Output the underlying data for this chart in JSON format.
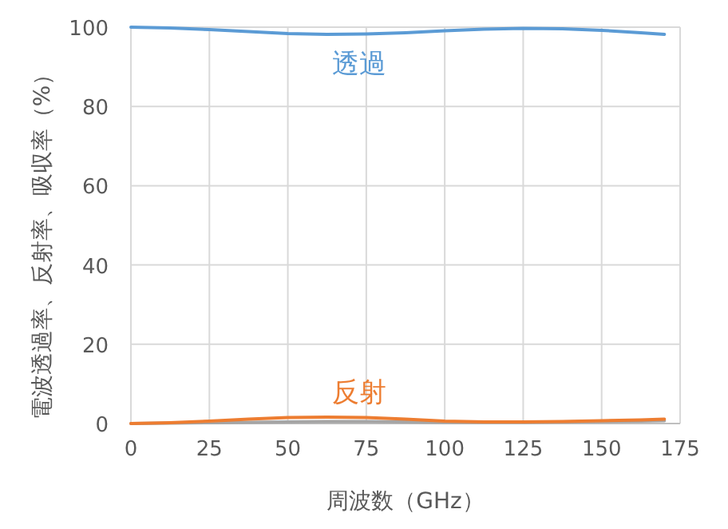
{
  "chart_data": {
    "type": "line",
    "xlabel": "周波数（GHz）",
    "ylabel": "電波透過率、反射率、吸収率（%）",
    "xlim": [
      0,
      175
    ],
    "ylim": [
      0,
      100
    ],
    "xticks": [
      0,
      25,
      50,
      75,
      100,
      125,
      150,
      175
    ],
    "yticks": [
      0,
      20,
      40,
      60,
      80,
      100
    ],
    "grid": true,
    "series": [
      {
        "color": "#5b9bd5",
        "x": [
          0,
          12.5,
          25,
          37.5,
          50,
          62.5,
          75,
          87.5,
          100,
          112.5,
          125,
          137.5,
          150,
          162.5,
          170
        ],
        "values": [
          100,
          99.8,
          99.4,
          98.9,
          98.4,
          98.2,
          98.3,
          98.6,
          99.1,
          99.5,
          99.7,
          99.6,
          99.2,
          98.6,
          98.2
        ]
      },
      {
        "color": "#ed7d31",
        "x": [
          0,
          12.5,
          25,
          37.5,
          50,
          62.5,
          75,
          87.5,
          100,
          112.5,
          125,
          137.5,
          150,
          162.5,
          170
        ],
        "values": [
          0,
          0.2,
          0.6,
          1.1,
          1.5,
          1.6,
          1.5,
          1.1,
          0.6,
          0.4,
          0.4,
          0.5,
          0.7,
          0.9,
          1.1
        ]
      },
      {
        "color": "#a5a5a5",
        "x": [
          0,
          12.5,
          25,
          37.5,
          50,
          62.5,
          75,
          87.5,
          100,
          112.5,
          125,
          137.5,
          150,
          162.5,
          170
        ],
        "values": [
          0,
          0.1,
          0.2,
          0.3,
          0.4,
          0.5,
          0.5,
          0.4,
          0.3,
          0.3,
          0.3,
          0.4,
          0.5,
          0.6,
          0.7
        ]
      }
    ],
    "annotations": [
      "透過",
      "反射"
    ]
  }
}
